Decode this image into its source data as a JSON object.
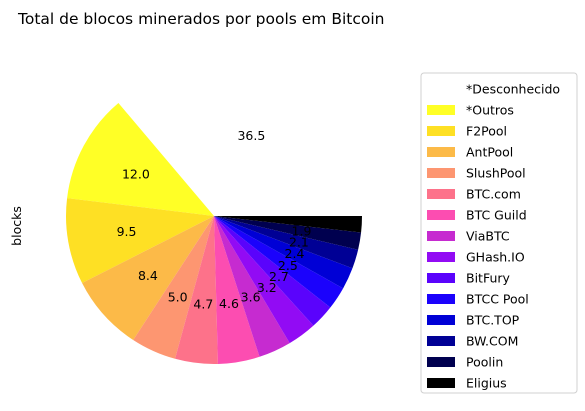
{
  "chart_data": {
    "type": "pie",
    "title": "Total de blocos minerados por pools em Bitcoin",
    "ylabel": "blocks",
    "legend_position": "right",
    "slices": [
      {
        "name": "*Desconhecido",
        "value": 36.5,
        "label": "36.5",
        "color": "#ffffff"
      },
      {
        "name": "*Outros",
        "value": 12.0,
        "label": "12.0",
        "color": "#ffff26"
      },
      {
        "name": "F2Pool",
        "value": 9.5,
        "label": "9.5",
        "color": "#fee024"
      },
      {
        "name": "AntPool",
        "value": 8.4,
        "label": "8.4",
        "color": "#fcba48"
      },
      {
        "name": "SlushPool",
        "value": 5.0,
        "label": "5.0",
        "color": "#fd9671"
      },
      {
        "name": "BTC.com",
        "value": 4.7,
        "label": "4.7",
        "color": "#fd728a"
      },
      {
        "name": "BTC Guild",
        "value": 4.6,
        "label": "4.6",
        "color": "#fc4db1"
      },
      {
        "name": "ViaBTC",
        "value": 3.6,
        "label": "3.6",
        "color": "#c62bd0"
      },
      {
        "name": "GHash.IO",
        "value": 3.2,
        "label": "3.2",
        "color": "#920bf4"
      },
      {
        "name": "BitFury",
        "value": 2.7,
        "label": "2.7",
        "color": "#5a03fc"
      },
      {
        "name": "BTCC Pool",
        "value": 2.5,
        "label": "2.5",
        "color": "#1b02fc"
      },
      {
        "name": "BTC.TOP",
        "value": 2.4,
        "label": "2.4",
        "color": "#0000d6"
      },
      {
        "name": "BW.COM",
        "value": 2.1,
        "label": "2.1",
        "color": "#000095"
      },
      {
        "name": "Poolin",
        "value": 1.9,
        "label": "1.9",
        "color": "#00004f"
      },
      {
        "name": "Eligius",
        "value": 1.8,
        "label": "1.8",
        "color": "#000000"
      }
    ]
  }
}
